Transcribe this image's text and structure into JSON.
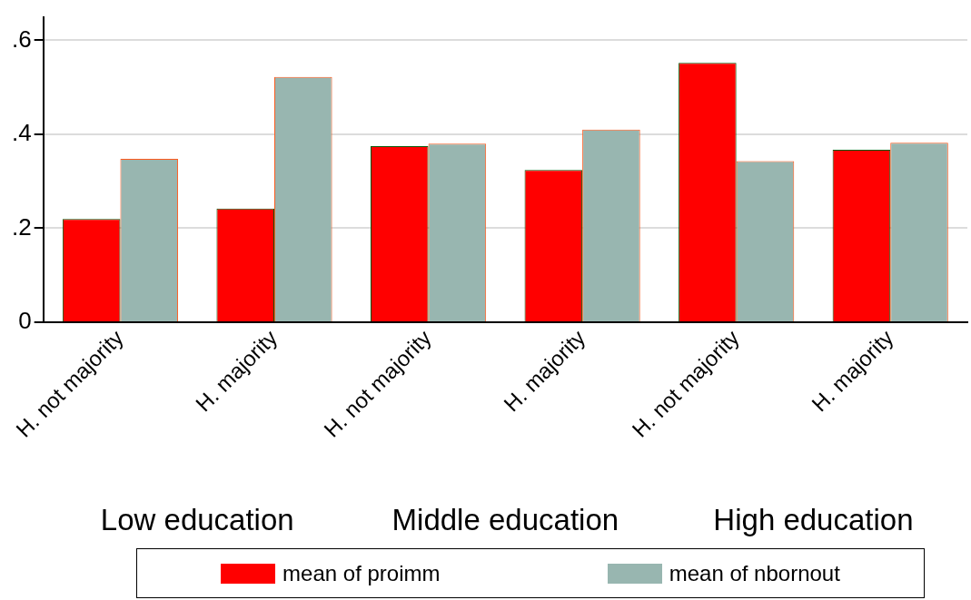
{
  "chart_data": {
    "type": "bar",
    "categories": [
      "H. not majority",
      "H. majority",
      "H. not majority",
      "H. majority",
      "H. not majority",
      "H. majority"
    ],
    "series": [
      {
        "name": "mean of proimm",
        "color": "#ff0000",
        "values": [
          0.22,
          0.242,
          0.375,
          0.324,
          0.552,
          0.367
        ]
      },
      {
        "name": "mean of nbornout",
        "color": "#98b6b0",
        "values": [
          0.348,
          0.522,
          0.38,
          0.41,
          0.343,
          0.382
        ]
      }
    ],
    "annotations": [
      "Low education",
      "Middle education",
      "High education"
    ],
    "ylim": [
      0,
      0.65
    ],
    "yticks": [
      {
        "value": 0,
        "label": "0"
      },
      {
        "value": 0.2,
        "label": ".2"
      },
      {
        "value": 0.4,
        "label": ".4"
      },
      {
        "value": 0.6,
        "label": ".6"
      }
    ],
    "grid": "y",
    "legend": "bottom"
  }
}
